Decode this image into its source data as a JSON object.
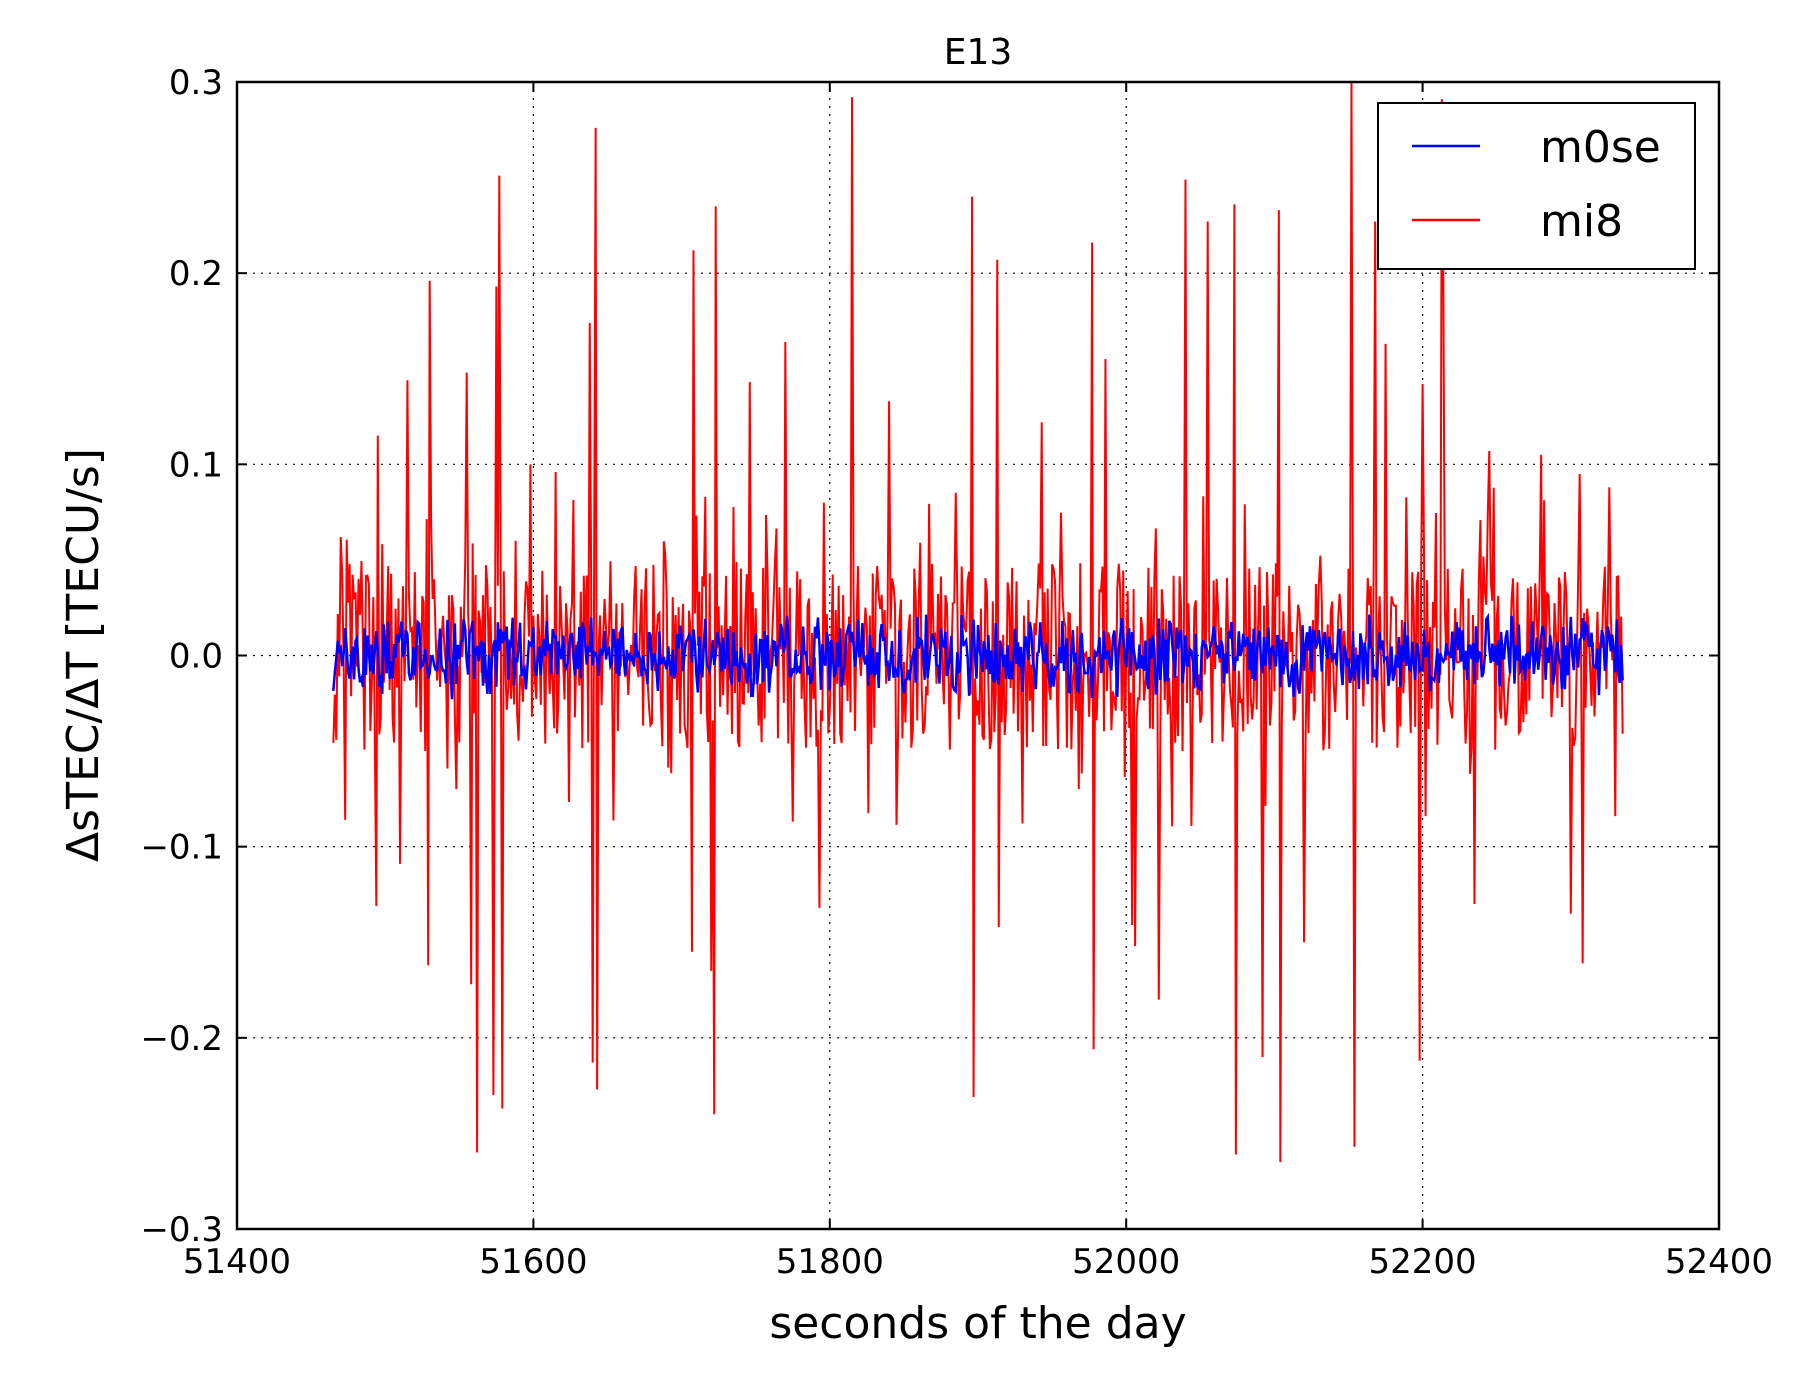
{
  "chart_data": {
    "type": "line",
    "title": "E13",
    "xlabel": "seconds of the day",
    "ylabel": "ΔsTEC/ΔT [TECU/s]",
    "xlim": [
      51400,
      52400
    ],
    "ylim": [
      -0.3,
      0.3
    ],
    "xticks": [
      51400,
      51600,
      51800,
      52000,
      52200,
      52400
    ],
    "xtick_labels": [
      "51400",
      "51600",
      "51800",
      "52000",
      "52200",
      "52400"
    ],
    "yticks": [
      0.3,
      0.2,
      0.1,
      0.0,
      -0.1,
      -0.2,
      -0.3
    ],
    "ytick_labels": [
      "0.3",
      "0.2",
      "0.1",
      "0.0",
      "−0.1",
      "−0.2",
      "−0.3"
    ],
    "grid": true,
    "legend_position": "top-right",
    "x_range_of_samples": [
      51465,
      52335
    ],
    "series": [
      {
        "name": "mi8",
        "color": "#ff0000",
        "amplitude_typical": 0.05,
        "spikes": [
          {
            "x": 51470,
            "y": 0.062
          },
          {
            "x": 51473,
            "y": -0.086
          },
          {
            "x": 51495,
            "y": 0.115
          },
          {
            "x": 51494,
            "y": -0.131
          },
          {
            "x": 51510,
            "y": -0.109
          },
          {
            "x": 51515,
            "y": 0.144
          },
          {
            "x": 51530,
            "y": 0.196
          },
          {
            "x": 51529,
            "y": -0.162
          },
          {
            "x": 51555,
            "y": 0.148
          },
          {
            "x": 51558,
            "y": -0.172
          },
          {
            "x": 51562,
            "y": -0.26
          },
          {
            "x": 51573,
            "y": -0.23
          },
          {
            "x": 51575,
            "y": 0.193
          },
          {
            "x": 51577,
            "y": 0.251
          },
          {
            "x": 51579,
            "y": -0.237
          },
          {
            "x": 51598,
            "y": 0.1
          },
          {
            "x": 51615,
            "y": 0.096
          },
          {
            "x": 51638,
            "y": 0.174
          },
          {
            "x": 51640,
            "y": -0.213
          },
          {
            "x": 51642,
            "y": 0.276
          },
          {
            "x": 51643,
            "y": -0.227
          },
          {
            "x": 51708,
            "y": 0.212
          },
          {
            "x": 51707,
            "y": -0.155
          },
          {
            "x": 51720,
            "y": -0.165
          },
          {
            "x": 51723,
            "y": 0.235
          },
          {
            "x": 51722,
            "y": -0.24
          },
          {
            "x": 51746,
            "y": 0.143
          },
          {
            "x": 51770,
            "y": 0.164
          },
          {
            "x": 51793,
            "y": -0.132
          },
          {
            "x": 51796,
            "y": 0.08
          },
          {
            "x": 51815,
            "y": 0.292
          },
          {
            "x": 51840,
            "y": 0.133
          },
          {
            "x": 51896,
            "y": 0.24
          },
          {
            "x": 51897,
            "y": -0.231
          },
          {
            "x": 51913,
            "y": 0.207
          },
          {
            "x": 51914,
            "y": -0.142
          },
          {
            "x": 51943,
            "y": 0.122
          },
          {
            "x": 51977,
            "y": 0.216
          },
          {
            "x": 51978,
            "y": -0.206
          },
          {
            "x": 51986,
            "y": 0.155
          },
          {
            "x": 52004,
            "y": -0.141
          },
          {
            "x": 52006,
            "y": -0.152
          },
          {
            "x": 52022,
            "y": -0.18
          },
          {
            "x": 52040,
            "y": 0.249
          },
          {
            "x": 52055,
            "y": 0.227
          },
          {
            "x": 52073,
            "y": 0.236
          },
          {
            "x": 52074,
            "y": -0.261
          },
          {
            "x": 52092,
            "y": -0.21
          },
          {
            "x": 52103,
            "y": 0.233
          },
          {
            "x": 52104,
            "y": -0.265
          },
          {
            "x": 52120,
            "y": -0.15
          },
          {
            "x": 52152,
            "y": 0.3
          },
          {
            "x": 52154,
            "y": -0.257
          },
          {
            "x": 52168,
            "y": 0.227
          },
          {
            "x": 52175,
            "y": 0.163
          },
          {
            "x": 52198,
            "y": -0.212
          },
          {
            "x": 52200,
            "y": 0.142
          },
          {
            "x": 52213,
            "y": 0.291
          },
          {
            "x": 52214,
            "y": 0.195
          },
          {
            "x": 52235,
            "y": -0.13
          },
          {
            "x": 52245,
            "y": 0.107
          },
          {
            "x": 52280,
            "y": 0.105
          },
          {
            "x": 52300,
            "y": -0.135
          },
          {
            "x": 52306,
            "y": 0.095
          },
          {
            "x": 52308,
            "y": -0.161
          },
          {
            "x": 52326,
            "y": 0.088
          },
          {
            "x": 52330,
            "y": -0.084
          }
        ]
      },
      {
        "name": "m0se",
        "color": "#0000ff",
        "amplitude_typical": 0.015,
        "max_abs": 0.03
      }
    ]
  }
}
